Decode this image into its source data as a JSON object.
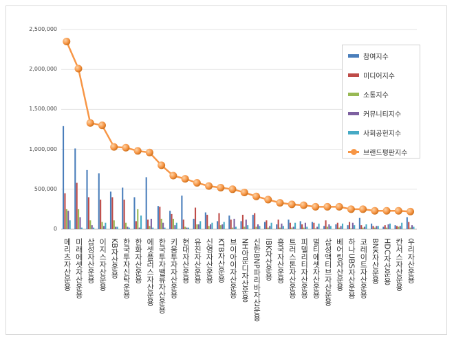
{
  "chart_data": {
    "type": "bar+line",
    "categories": [
      "메리츠자산운용",
      "미래에셋자산운용",
      "삼성자산운용",
      "이지스자산운용",
      "KB자산운용",
      "한국투자신탁운용",
      "한화자산운용",
      "에셋플러스자산운용",
      "한국투자밸류자산운용",
      "키움투자자산운용",
      "현대자산운용",
      "유진자산운용",
      "신영자산운용",
      "KTB자산운용",
      "브이아이자산운용",
      "NH아문디자산운용",
      "신한BNP파리바자산운용",
      "IBK자산운용",
      "흥국자산운용",
      "트러스톤자산운용",
      "피델리티자산운용",
      "멀티에셋자산운용",
      "삼성액티브자산운용",
      "베어링자산운용",
      "하나UBS자산운용",
      "코레이트자산운용",
      "BNK자산운용",
      "HDC자산운용",
      "칸서스자산운용",
      "우리자산운용"
    ],
    "ylim": [
      0,
      2500000
    ],
    "yticks": [
      "0",
      "500,000",
      "1,000,000",
      "1,500,000",
      "2,000,000",
      "2,500,000"
    ],
    "grid": true,
    "legend_position": "right",
    "series": [
      {
        "name": "참여지수",
        "kind": "bar",
        "color": "#4a7ebb",
        "values": [
          1290000,
          1010000,
          740000,
          700000,
          470000,
          520000,
          400000,
          650000,
          290000,
          230000,
          420000,
          130000,
          210000,
          100000,
          170000,
          100000,
          180000,
          90000,
          60000,
          120000,
          100000,
          90000,
          40000,
          60000,
          50000,
          140000,
          70000,
          30000,
          50000,
          150000
        ]
      },
      {
        "name": "미디어지수",
        "kind": "bar",
        "color": "#be4b48",
        "values": [
          450000,
          580000,
          400000,
          370000,
          400000,
          370000,
          100000,
          120000,
          280000,
          190000,
          120000,
          270000,
          180000,
          200000,
          120000,
          180000,
          200000,
          110000,
          120000,
          80000,
          60000,
          80000,
          110000,
          80000,
          90000,
          50000,
          40000,
          50000,
          40000,
          90000
        ]
      },
      {
        "name": "소통지수",
        "kind": "bar",
        "color": "#98b954",
        "values": [
          250000,
          250000,
          110000,
          90000,
          110000,
          80000,
          250000,
          40000,
          130000,
          130000,
          30000,
          60000,
          40000,
          50000,
          20000,
          30000,
          30000,
          20000,
          20000,
          20000,
          20000,
          10000,
          30000,
          20000,
          10000,
          20000,
          20000,
          20000,
          30000,
          20000
        ]
      },
      {
        "name": "커뮤니티지수",
        "kind": "bar",
        "color": "#7d60a0",
        "values": [
          230000,
          150000,
          50000,
          40000,
          30000,
          30000,
          20000,
          130000,
          80000,
          50000,
          20000,
          60000,
          60000,
          60000,
          130000,
          120000,
          60000,
          40000,
          70000,
          30000,
          80000,
          30000,
          60000,
          40000,
          80000,
          30000,
          40000,
          60000,
          40000,
          50000
        ]
      },
      {
        "name": "사회공헌지수",
        "kind": "bar",
        "color": "#46aac5",
        "values": [
          110000,
          20000,
          20000,
          80000,
          30000,
          20000,
          170000,
          20000,
          20000,
          80000,
          20000,
          100000,
          80000,
          90000,
          30000,
          50000,
          40000,
          80000,
          40000,
          80000,
          30000,
          70000,
          40000,
          70000,
          50000,
          60000,
          40000,
          70000,
          80000,
          30000
        ]
      },
      {
        "name": "브랜드평판지수",
        "kind": "line",
        "color": "#f79646",
        "values": [
          2350000,
          2010000,
          1330000,
          1300000,
          1030000,
          1020000,
          980000,
          960000,
          800000,
          670000,
          630000,
          580000,
          540000,
          520000,
          500000,
          460000,
          410000,
          370000,
          330000,
          310000,
          300000,
          280000,
          280000,
          280000,
          250000,
          250000,
          230000,
          230000,
          230000,
          220000
        ]
      }
    ]
  }
}
